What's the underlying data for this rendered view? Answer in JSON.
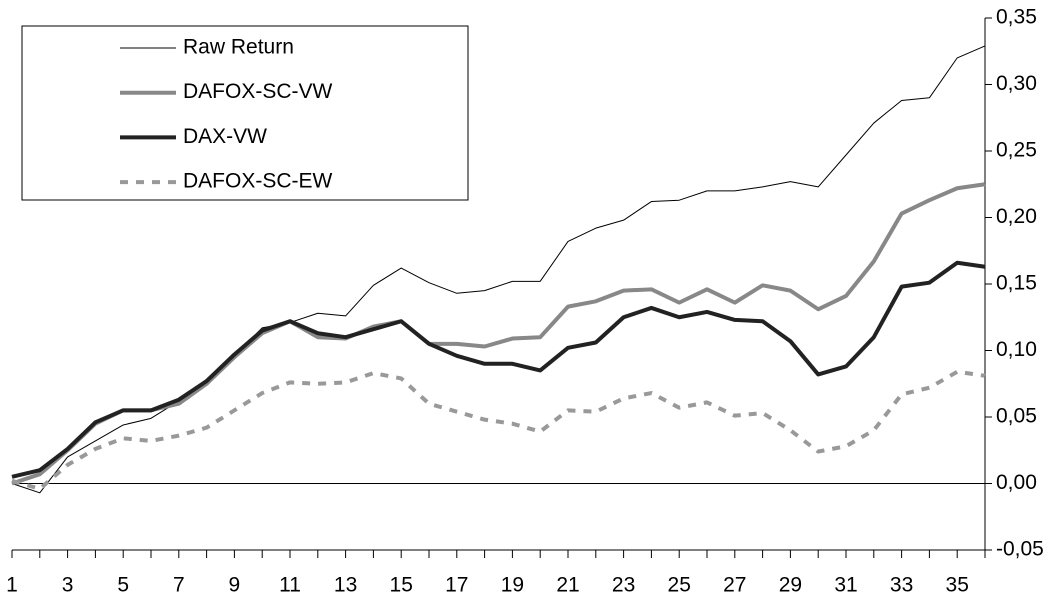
{
  "chart_data": {
    "type": "line",
    "categories": [
      "1",
      null,
      "3",
      null,
      "5",
      null,
      "7",
      null,
      "9",
      null,
      "11",
      null,
      "13",
      null,
      "15",
      null,
      "17",
      null,
      "19",
      null,
      "21",
      null,
      "23",
      null,
      "25",
      null,
      "27",
      null,
      "29",
      null,
      "31",
      null,
      "33",
      null,
      "35",
      null
    ],
    "series": [
      {
        "name": "Raw Return",
        "color": "#000000",
        "width": 1,
        "dashed": false,
        "values": [
          0.0,
          -0.007,
          0.02,
          0.032,
          0.044,
          0.049,
          0.062,
          0.077,
          0.096,
          0.117,
          0.121,
          0.128,
          0.126,
          0.149,
          0.162,
          0.151,
          0.143,
          0.145,
          0.152,
          0.152,
          0.182,
          0.192,
          0.198,
          0.212,
          0.213,
          0.22,
          0.22,
          0.223,
          0.227,
          0.223,
          0.247,
          0.271,
          0.288,
          0.29,
          0.32,
          0.329
        ]
      },
      {
        "name": "DAFOX-SC-VW",
        "color": "#888888",
        "width": 4,
        "dashed": false,
        "values": [
          0.0,
          0.007,
          0.025,
          0.045,
          0.055,
          0.055,
          0.06,
          0.075,
          0.095,
          0.113,
          0.122,
          0.11,
          0.109,
          0.118,
          0.122,
          0.105,
          0.105,
          0.103,
          0.109,
          0.11,
          0.133,
          0.137,
          0.145,
          0.146,
          0.136,
          0.146,
          0.136,
          0.149,
          0.145,
          0.131,
          0.141,
          0.167,
          0.203,
          0.213,
          0.222,
          0.225
        ]
      },
      {
        "name": "DAX-VW",
        "color": "#222222",
        "width": 4,
        "dashed": false,
        "values": [
          0.005,
          0.01,
          0.026,
          0.046,
          0.055,
          0.055,
          0.063,
          0.077,
          0.097,
          0.115,
          0.122,
          0.113,
          0.11,
          0.116,
          0.122,
          0.105,
          0.096,
          0.09,
          0.09,
          0.085,
          0.102,
          0.106,
          0.125,
          0.132,
          0.125,
          0.129,
          0.123,
          0.122,
          0.107,
          0.082,
          0.088,
          0.11,
          0.148,
          0.151,
          0.166,
          0.163
        ]
      },
      {
        "name": "DAFOX-SC-EW",
        "color": "#999999",
        "width": 4,
        "dashed": true,
        "values": [
          0.002,
          -0.004,
          0.014,
          0.026,
          0.034,
          0.032,
          0.036,
          0.042,
          0.055,
          0.068,
          0.076,
          0.075,
          0.076,
          0.083,
          0.079,
          0.06,
          0.054,
          0.048,
          0.045,
          0.039,
          0.055,
          0.054,
          0.064,
          0.068,
          0.057,
          0.061,
          0.051,
          0.053,
          0.04,
          0.024,
          0.028,
          0.04,
          0.067,
          0.072,
          0.084,
          0.081
        ]
      }
    ],
    "ylim": [
      -0.05,
      0.35
    ],
    "yticks": [
      {
        "value": -0.05,
        "label": "-0,05"
      },
      {
        "value": 0,
        "label": "0,00"
      },
      {
        "value": 0.05,
        "label": "0,05"
      },
      {
        "value": 0.1,
        "label": "0,10"
      },
      {
        "value": 0.15,
        "label": "0,15"
      },
      {
        "value": 0.2,
        "label": "0,20"
      },
      {
        "value": 0.25,
        "label": "0,25"
      },
      {
        "value": 0.3,
        "label": "0,30"
      },
      {
        "value": 0.35,
        "label": "0,35"
      }
    ],
    "y_axis_side": "right",
    "zero_line": true,
    "legend": "top-left"
  }
}
